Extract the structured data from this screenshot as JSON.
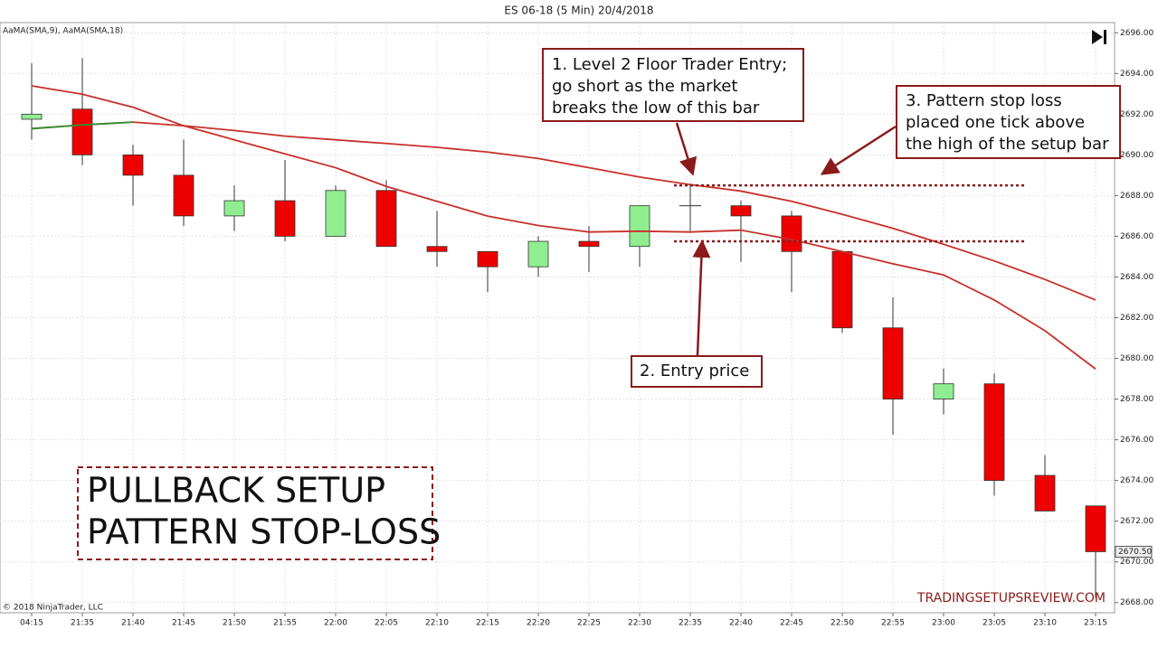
{
  "chart_data": {
    "type": "candlestick",
    "title": "ES 06-18 (5 Min)  20/4/2018",
    "indicator_label": "AaMA(SMA,9), AaMA(SMA,18)",
    "copyright": "© 2018 NinjaTrader, LLC",
    "watermark": "TRADINGSETUPSREVIEW.COM",
    "categories": [
      "04:15",
      "21:35",
      "21:40",
      "21:45",
      "21:50",
      "21:55",
      "22:00",
      "22:05",
      "22:10",
      "22:15",
      "22:20",
      "22:25",
      "22:30",
      "22:35",
      "22:40",
      "22:45",
      "22:50",
      "22:55",
      "23:00",
      "23:05",
      "23:10",
      "23:15"
    ],
    "open": [
      2691.75,
      2692.25,
      2690.0,
      2689.0,
      2687.0,
      2687.75,
      2686.0,
      2688.25,
      2685.5,
      2685.25,
      2684.5,
      2685.75,
      2685.5,
      2687.5,
      2687.5,
      2687.0,
      2685.25,
      2681.5,
      2678.0,
      2678.75,
      2674.25,
      2672.75
    ],
    "high": [
      2694.5,
      2694.75,
      2690.5,
      2690.75,
      2688.5,
      2689.75,
      2688.5,
      2688.75,
      2687.25,
      2685.25,
      2686.0,
      2686.5,
      2687.5,
      2688.5,
      2687.75,
      2687.25,
      2685.25,
      2683.0,
      2679.5,
      2679.25,
      2675.25,
      2672.75
    ],
    "low": [
      2690.75,
      2689.5,
      2687.5,
      2686.5,
      2686.25,
      2685.75,
      2686.0,
      2685.5,
      2684.5,
      2683.25,
      2684.0,
      2684.25,
      2684.5,
      2686.25,
      2684.75,
      2683.25,
      2681.25,
      2676.25,
      2677.25,
      2673.25,
      2672.5,
      2668.25
    ],
    "close": [
      2692.0,
      2690.0,
      2689.0,
      2687.0,
      2687.75,
      2686.0,
      2688.25,
      2685.5,
      2685.25,
      2684.5,
      2685.75,
      2685.5,
      2687.5,
      2687.5,
      2687.0,
      2685.25,
      2681.5,
      2678.0,
      2678.75,
      2674.0,
      2672.5,
      2670.5
    ],
    "up_color": "#90ee90",
    "down_color": "#ee0000",
    "overlays": [
      {
        "color": "#c8302a",
        "values": [
          2693.39,
          2692.98,
          2692.34,
          2691.43,
          2690.74,
          2690.05,
          2689.37,
          2688.45,
          2687.72,
          2686.99,
          2686.53,
          2686.21,
          2686.25,
          2686.21,
          2686.3,
          2685.84,
          2685.25,
          2684.65,
          2684.1,
          2682.87,
          2681.36,
          2679.48
        ]
      },
      {
        "color": "#c8302a",
        "rising_color": "#2f8f2f",
        "values": [
          2691.29,
          2691.47,
          2691.61,
          2691.43,
          2691.2,
          2690.92,
          2690.74,
          2690.56,
          2690.37,
          2690.14,
          2689.82,
          2689.37,
          2688.91,
          2688.54,
          2688.22,
          2687.72,
          2687.08,
          2686.39,
          2685.61,
          2684.79,
          2683.88,
          2682.87
        ]
      }
    ],
    "ylim": [
      2667.5,
      2696.5
    ],
    "yticks": [
      {
        "value": 2668,
        "label": "2668.00"
      },
      {
        "value": 2670,
        "label": "2670.00"
      },
      {
        "value": 2672,
        "label": "2672.00"
      },
      {
        "value": 2674,
        "label": "2674.00"
      },
      {
        "value": 2676,
        "label": "2676.00"
      },
      {
        "value": 2678,
        "label": "2678.00"
      },
      {
        "value": 2680,
        "label": "2680.00"
      },
      {
        "value": 2682,
        "label": "2682.00"
      },
      {
        "value": 2684,
        "label": "2684.00"
      },
      {
        "value": 2686,
        "label": "2686.00"
      },
      {
        "value": 2688,
        "label": "2688.00"
      },
      {
        "value": 2690,
        "label": "2690.00"
      },
      {
        "value": 2692,
        "label": "2692.00"
      },
      {
        "value": 2694,
        "label": "2694.00"
      },
      {
        "value": 2696,
        "label": "2696.00"
      }
    ],
    "last_price": {
      "value": 2670.5,
      "label": "2670.50"
    },
    "levels": [
      2688.5,
      2685.75
    ],
    "grid": true,
    "annotations": [
      {
        "lines": [
          "1. Level 2 Floor Trader Entry;",
          "go short as the market",
          "breaks the low of this bar"
        ]
      },
      {
        "lines": [
          "2. Entry price"
        ]
      },
      {
        "lines": [
          "3. Pattern stop loss",
          "placed one tick above",
          "the high of the setup bar"
        ]
      }
    ],
    "headline": [
      "PULLBACK SETUP",
      "PATTERN STOP-LOSS"
    ]
  }
}
